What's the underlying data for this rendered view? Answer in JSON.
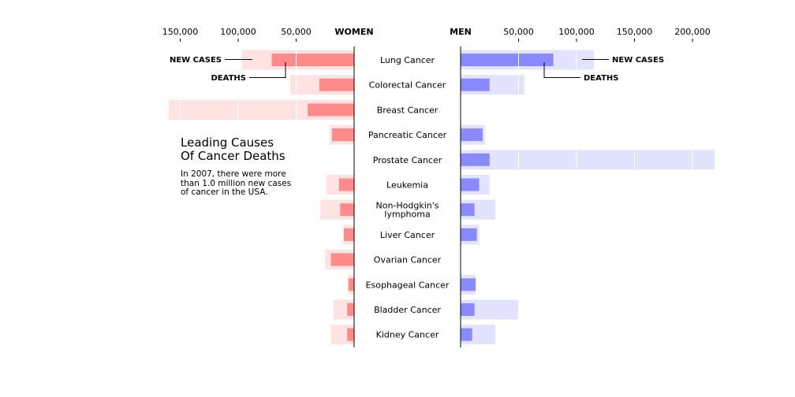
{
  "chart_data": {
    "type": "bar",
    "title": "Leading Causes\nOf Cancer Deaths",
    "subtitle": "In 2007, there were more\nthan 1.0 million new cases\nof cancer in the USA.",
    "left_side_title": "WOMEN",
    "right_side_title": "MEN",
    "categories": [
      "Lung Cancer",
      "Colorectal Cancer",
      "Breast Cancer",
      "Pancreatic Cancer",
      "Prostate Cancer",
      "Leukemia",
      "Non-Hodgkin's\nlymphoma",
      "Liver Cancer",
      "Ovarian Cancer",
      "Esophageal Cancer",
      "Bladder Cancer",
      "Kidney Cancer"
    ],
    "women_new_cases": [
      97000,
      55000,
      160000,
      21000,
      0,
      24000,
      29000,
      9000,
      25000,
      5000,
      18000,
      20000
    ],
    "women_deaths": [
      71000,
      30000,
      40000,
      19000,
      0,
      13000,
      12000,
      9000,
      20000,
      5000,
      6000,
      6000
    ],
    "men_new_cases": [
      115000,
      55000,
      0,
      21000,
      219000,
      25000,
      30000,
      16000,
      0,
      13000,
      50000,
      30000
    ],
    "men_deaths": [
      80000,
      25000,
      0,
      19000,
      25000,
      16000,
      12000,
      14000,
      0,
      13000,
      12000,
      10000
    ],
    "women_ticks": [
      "150,000",
      "100,000",
      "50,000"
    ],
    "women_tick_values": [
      150000,
      100000,
      50000
    ],
    "men_ticks": [
      "50,000",
      "100,000",
      "150,000",
      "200,000"
    ],
    "men_tick_values": [
      50000,
      100000,
      150000,
      200000
    ],
    "annotations": {
      "new_cases_left": "NEW CASES",
      "deaths_left": "DEATHS",
      "new_cases_right": "NEW CASES",
      "deaths_right": "DEATHS"
    },
    "colors": {
      "women_new_cases": "#ffe2e2",
      "women_deaths": "#ff8a8a",
      "men_new_cases": "#e3e3ff",
      "men_deaths": "#8a8aff",
      "grid": "#ffffff"
    }
  }
}
